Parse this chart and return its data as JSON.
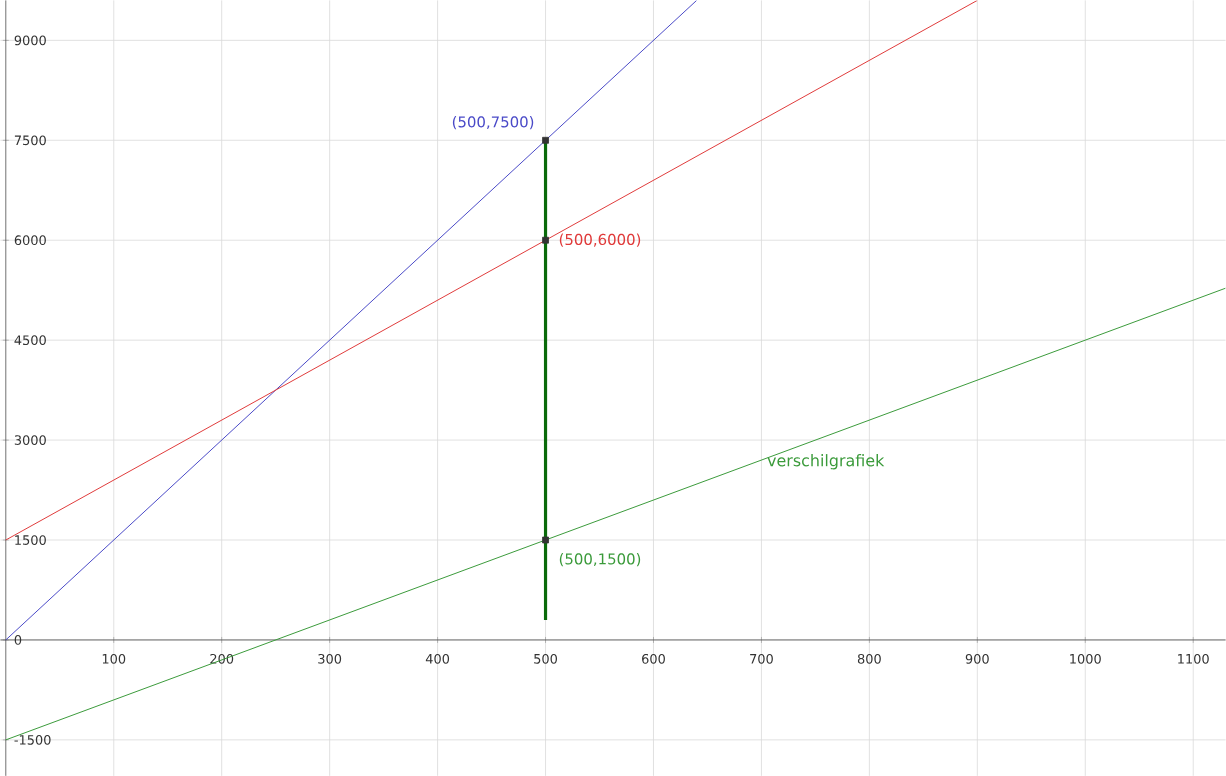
{
  "chart_data": {
    "type": "line",
    "xlim": [
      -5,
      1130
    ],
    "ylim": [
      -2040,
      9600
    ],
    "xticks": [
      100,
      200,
      300,
      400,
      500,
      600,
      700,
      800,
      900,
      1000,
      1100
    ],
    "yticks": [
      -1500,
      0,
      1500,
      3000,
      4500,
      6000,
      7500,
      9000
    ],
    "grid": true,
    "marker": "none",
    "line_style": "solid",
    "series": [
      {
        "color": "#4a4ac8",
        "x": [
          0,
          640
        ],
        "values": [
          0,
          9600
        ]
      },
      {
        "color": "#e03a3a",
        "x": [
          0,
          900
        ],
        "values": [
          1500,
          9600
        ]
      },
      {
        "color": "#3a9a3a",
        "x": [
          0,
          1130
        ],
        "values": [
          -1500,
          5280
        ]
      },
      {
        "color": "#0a6a0a",
        "x": [
          500,
          500
        ],
        "values": [
          300,
          7500
        ]
      },
      {
        "type": "scatter",
        "marker": "square",
        "color": "#333333",
        "x": [
          500,
          500,
          500
        ],
        "values": [
          7500,
          6000,
          1500
        ],
        "value_labels": [
          "(500,7500)",
          "(500,6000)",
          "(500,1500)"
        ]
      }
    ],
    "annotations": [
      "verschilgrafiek"
    ]
  }
}
